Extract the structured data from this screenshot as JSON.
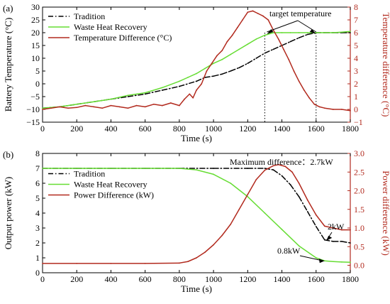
{
  "chart_data": [
    {
      "panel_label": "(a)",
      "type": "line",
      "xlabel": "Time (s)",
      "ylabel": "Battery Temperature (°C)",
      "ylabel_right": "Temperature difference (°C)",
      "xlim": [
        0,
        1800
      ],
      "ylim": [
        -15,
        30
      ],
      "ylim_right": [
        -1,
        8
      ],
      "xticks": [
        0,
        200,
        400,
        600,
        800,
        1000,
        1200,
        1400,
        1600,
        1800
      ],
      "yticks": [
        -15,
        -10,
        -5,
        0,
        5,
        10,
        15,
        20,
        25,
        30
      ],
      "yticks_right": [
        -1,
        0,
        1,
        2,
        3,
        4,
        5,
        6,
        7,
        8
      ],
      "legend_position": "top-left",
      "annotation": "target temperature",
      "target_markers_x": [
        1300,
        1600
      ],
      "series": [
        {
          "name": "Tradition",
          "axis": "left",
          "color": "#000000",
          "style": "dashdot",
          "x": [
            0,
            100,
            200,
            300,
            400,
            500,
            600,
            700,
            800,
            900,
            950,
            1000,
            1050,
            1100,
            1150,
            1200,
            1250,
            1300,
            1350,
            1400,
            1450,
            1500,
            1550,
            1600,
            1650,
            1700,
            1750,
            1800
          ],
          "y": [
            -9.5,
            -9,
            -8,
            -7,
            -6,
            -5,
            -4,
            -2.5,
            -1,
            1,
            2.5,
            3,
            3.8,
            5,
            6.3,
            8,
            10,
            12,
            13.5,
            15,
            16.5,
            18,
            19.3,
            20,
            20,
            20,
            20,
            20
          ]
        },
        {
          "name": "Waste Heat Recovery",
          "axis": "left",
          "color": "#66dd33",
          "style": "solid",
          "x": [
            0,
            100,
            200,
            300,
            400,
            500,
            600,
            700,
            800,
            850,
            900,
            950,
            1000,
            1050,
            1100,
            1150,
            1200,
            1250,
            1300,
            1350,
            1400,
            1450,
            1500,
            1550,
            1600,
            1650,
            1700,
            1750,
            1800
          ],
          "y": [
            -9.5,
            -9,
            -8,
            -7,
            -6,
            -4.5,
            -3.5,
            -1.5,
            1,
            2.5,
            4,
            6,
            8,
            9.5,
            11.5,
            13.5,
            15.5,
            17.5,
            19,
            20,
            20,
            20,
            20,
            20,
            20,
            20,
            20,
            20.2,
            20.5
          ]
        },
        {
          "name": "Temperature Difference (°C)",
          "axis": "right",
          "color": "#b22a1e",
          "style": "solid",
          "x": [
            0,
            50,
            100,
            150,
            200,
            250,
            300,
            350,
            400,
            450,
            500,
            550,
            600,
            650,
            700,
            750,
            800,
            830,
            860,
            880,
            900,
            930,
            960,
            990,
            1020,
            1050,
            1080,
            1110,
            1140,
            1170,
            1200,
            1230,
            1260,
            1290,
            1320,
            1350,
            1380,
            1410,
            1440,
            1470,
            1500,
            1530,
            1560,
            1590,
            1620,
            1650,
            1700,
            1750,
            1800
          ],
          "y": [
            0,
            0.1,
            0.2,
            0.1,
            0.15,
            0.3,
            0.2,
            0.1,
            0.3,
            0.2,
            0.1,
            0.3,
            0.2,
            0.4,
            0.3,
            0.5,
            0.3,
            0.8,
            1.2,
            0.9,
            1.5,
            2.0,
            3.0,
            3.6,
            4.2,
            4.6,
            5.3,
            5.8,
            6.4,
            7.0,
            7.6,
            7.7,
            7.5,
            7.3,
            7.0,
            6.2,
            5.5,
            4.7,
            3.9,
            3.0,
            2.2,
            1.5,
            0.9,
            0.4,
            0.2,
            0.1,
            0.0,
            0.0,
            -0.1
          ]
        }
      ]
    },
    {
      "panel_label": "(b)",
      "type": "line",
      "xlabel": "Time (s)",
      "ylabel": "Output power (kW)",
      "ylabel_right": "Power difference (kW)",
      "xlim": [
        0,
        1800
      ],
      "ylim": [
        0,
        8
      ],
      "ylim_right": [
        -0.2,
        3.0
      ],
      "xticks": [
        0,
        200,
        400,
        600,
        800,
        1000,
        1200,
        1400,
        1600,
        1800
      ],
      "yticks": [
        0,
        1,
        2,
        3,
        4,
        5,
        6,
        7,
        8
      ],
      "yticks_right": [
        0.0,
        0.5,
        1.0,
        1.5,
        2.0,
        2.5,
        3.0
      ],
      "legend_position": "center-left",
      "annotations": [
        "Maximum difference：2.7kW",
        "2kW",
        "0.8kW"
      ],
      "series": [
        {
          "name": "Tradition",
          "axis": "left",
          "color": "#000000",
          "style": "dashdot",
          "x": [
            0,
            200,
            400,
            600,
            800,
            1000,
            1200,
            1300,
            1350,
            1400,
            1450,
            1500,
            1550,
            1600,
            1650,
            1700,
            1750,
            1800
          ],
          "y": [
            7,
            7,
            7,
            7,
            7,
            7,
            7,
            7,
            6.9,
            6.5,
            5.9,
            5.1,
            4.1,
            3.1,
            2.2,
            2.1,
            2.1,
            2.0
          ]
        },
        {
          "name": "Waste Heat Recovery",
          "axis": "left",
          "color": "#66dd33",
          "style": "solid",
          "x": [
            0,
            200,
            400,
            600,
            800,
            900,
            1000,
            1100,
            1200,
            1300,
            1400,
            1500,
            1600,
            1650,
            1700,
            1750,
            1800
          ],
          "y": [
            7,
            7,
            7,
            7,
            7,
            6.9,
            6.6,
            6.0,
            5.1,
            4.0,
            2.9,
            1.8,
            1.0,
            0.8,
            0.75,
            0.72,
            0.7
          ]
        },
        {
          "name": "Power Difference (kW)",
          "axis": "right",
          "color": "#b22a1e",
          "style": "solid",
          "x": [
            0,
            200,
            400,
            600,
            800,
            850,
            900,
            950,
            1000,
            1050,
            1100,
            1150,
            1200,
            1250,
            1300,
            1350,
            1380,
            1420,
            1460,
            1500,
            1550,
            1600,
            1650,
            1700,
            1750,
            1800
          ],
          "y": [
            0.05,
            0.05,
            0.05,
            0.05,
            0.06,
            0.1,
            0.2,
            0.35,
            0.55,
            0.8,
            1.1,
            1.5,
            1.9,
            2.3,
            2.55,
            2.67,
            2.7,
            2.65,
            2.5,
            2.2,
            1.75,
            1.35,
            1.05,
            1.0,
            0.95,
            0.95
          ]
        }
      ]
    }
  ]
}
